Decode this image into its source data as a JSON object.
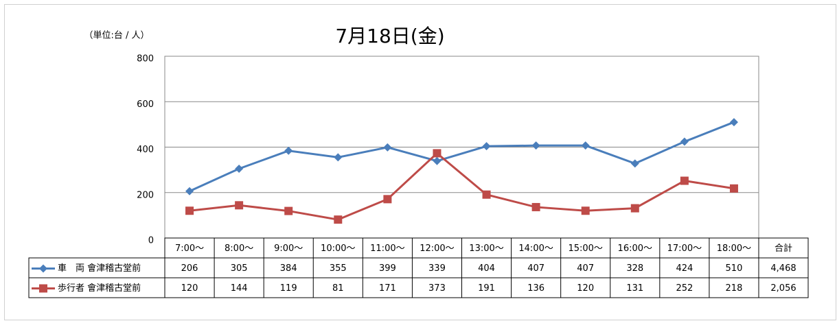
{
  "chart_data": {
    "type": "line",
    "title": "7月18日(金)",
    "unit_label": "（単位:台 / 人）",
    "categories": [
      "7:00〜",
      "8:00〜",
      "9:00〜",
      "10:00〜",
      "11:00〜",
      "12:00〜",
      "13:00〜",
      "14:00〜",
      "15:00〜",
      "16:00〜",
      "17:00〜",
      "18:00〜"
    ],
    "total_header": "合計",
    "series": [
      {
        "name": "車　両 會津稽古堂前",
        "color": "#4a7ebb",
        "marker": "diamond",
        "values": [
          206,
          305,
          384,
          355,
          399,
          339,
          404,
          407,
          407,
          328,
          424,
          510
        ],
        "total": 4468,
        "total_label": "4,468"
      },
      {
        "name": "歩行者 會津稽古堂前",
        "color": "#be4b48",
        "marker": "square",
        "values": [
          120,
          144,
          119,
          81,
          171,
          373,
          191,
          136,
          120,
          131,
          252,
          218
        ],
        "total": 2056,
        "total_label": "2,056"
      }
    ],
    "ylim": [
      0,
      800
    ],
    "yticks": [
      0,
      200,
      400,
      600,
      800
    ],
    "grid": true
  }
}
